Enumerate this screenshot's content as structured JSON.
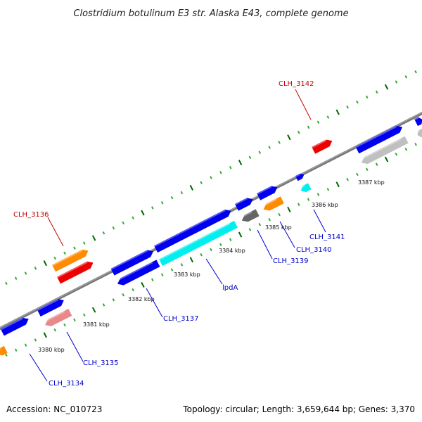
{
  "header": {
    "title": "Clostridium botulinum E3 str. Alaska E43, complete genome"
  },
  "footer": {
    "accession": "Accession: NC_010723",
    "summary": "Topology: circular; Length: 3,659,644 bp; Genes: 3,370"
  },
  "scale_ticks": [
    "3380 kbp",
    "3381 kbp",
    "3382 kbp",
    "3383 kbp",
    "3384 kbp",
    "3385 kbp",
    "3386 kbp",
    "3387 kbp"
  ],
  "gene_labels": [
    {
      "text": "CLH_3142",
      "color": "#cc0000"
    },
    {
      "text": "CLH_3136",
      "color": "#cc0000"
    },
    {
      "text": "CLH_3141",
      "color": "#0000cc"
    },
    {
      "text": "CLH_3140",
      "color": "#0000cc"
    },
    {
      "text": "CLH_3139",
      "color": "#0000cc"
    },
    {
      "text": "lpdA",
      "color": "#0000cc"
    },
    {
      "text": "CLH_3137",
      "color": "#0000cc"
    },
    {
      "text": "CLH_3135",
      "color": "#0000cc"
    },
    {
      "text": "CLH_3134",
      "color": "#0000cc"
    }
  ],
  "colors": {
    "backbone": "#888888",
    "tick_dark": "#006600",
    "tick_light": "#33aa33",
    "blue": "#0000ee",
    "cyan": "#00eeee",
    "orange": "#ff8c00",
    "red": "#ee0000",
    "pink": "#e88888",
    "gray_dark": "#666666",
    "gray_light": "#c0c0c0"
  }
}
